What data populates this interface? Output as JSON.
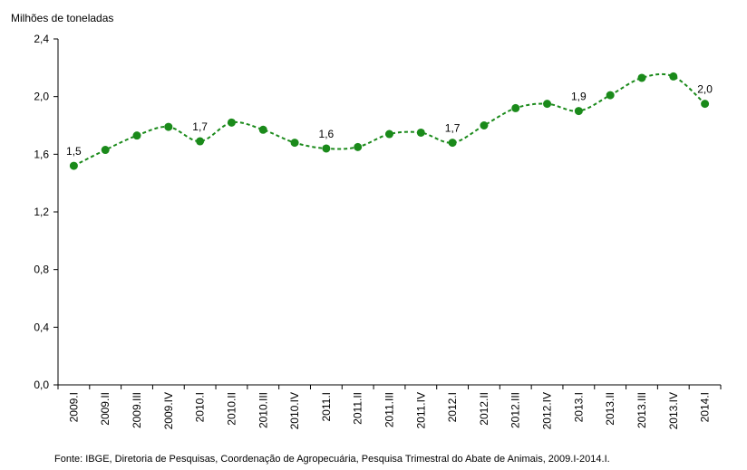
{
  "chart_data": {
    "type": "line",
    "title": "",
    "xlabel": "",
    "ylabel": "Milhões de toneladas",
    "ylim": [
      0,
      2.4
    ],
    "yticks": [
      "0,0",
      "0,4",
      "0,8",
      "1,2",
      "1,6",
      "2,0",
      "2,4"
    ],
    "ytick_values": [
      0,
      0.4,
      0.8,
      1.2,
      1.6,
      2.0,
      2.4
    ],
    "grid": false,
    "legend": "none",
    "categories": [
      "2009.I",
      "2009.II",
      "2009.III",
      "2009.IV",
      "2010.I",
      "2010.II",
      "2010.III",
      "2010.IV",
      "2011.I",
      "2011.II",
      "2011.III",
      "2011.IV",
      "2012.I",
      "2012.II",
      "2012.III",
      "2012.IV",
      "2013.I",
      "2013.II",
      "2013.III",
      "2013.IV",
      "2014.I"
    ],
    "series": [
      {
        "values": [
          1.52,
          1.63,
          1.73,
          1.79,
          1.69,
          1.82,
          1.77,
          1.68,
          1.64,
          1.65,
          1.74,
          1.75,
          1.68,
          1.8,
          1.92,
          1.95,
          1.9,
          2.01,
          2.13,
          2.14,
          1.95
        ],
        "color": "#1a8a1a",
        "line_style": "dashed"
      }
    ],
    "data_labels": [
      {
        "index": 0,
        "text": "1,5"
      },
      {
        "index": 4,
        "text": "1,7"
      },
      {
        "index": 8,
        "text": "1,6"
      },
      {
        "index": 12,
        "text": "1,7"
      },
      {
        "index": 16,
        "text": "1,9"
      },
      {
        "index": 20,
        "text": "2,0"
      }
    ],
    "source": "Fonte: IBGE, Diretoria de Pesquisas, Coordenação de Agropecuária, Pesquisa Trimestral do Abate de Animais, 2009.I-2014.I."
  }
}
